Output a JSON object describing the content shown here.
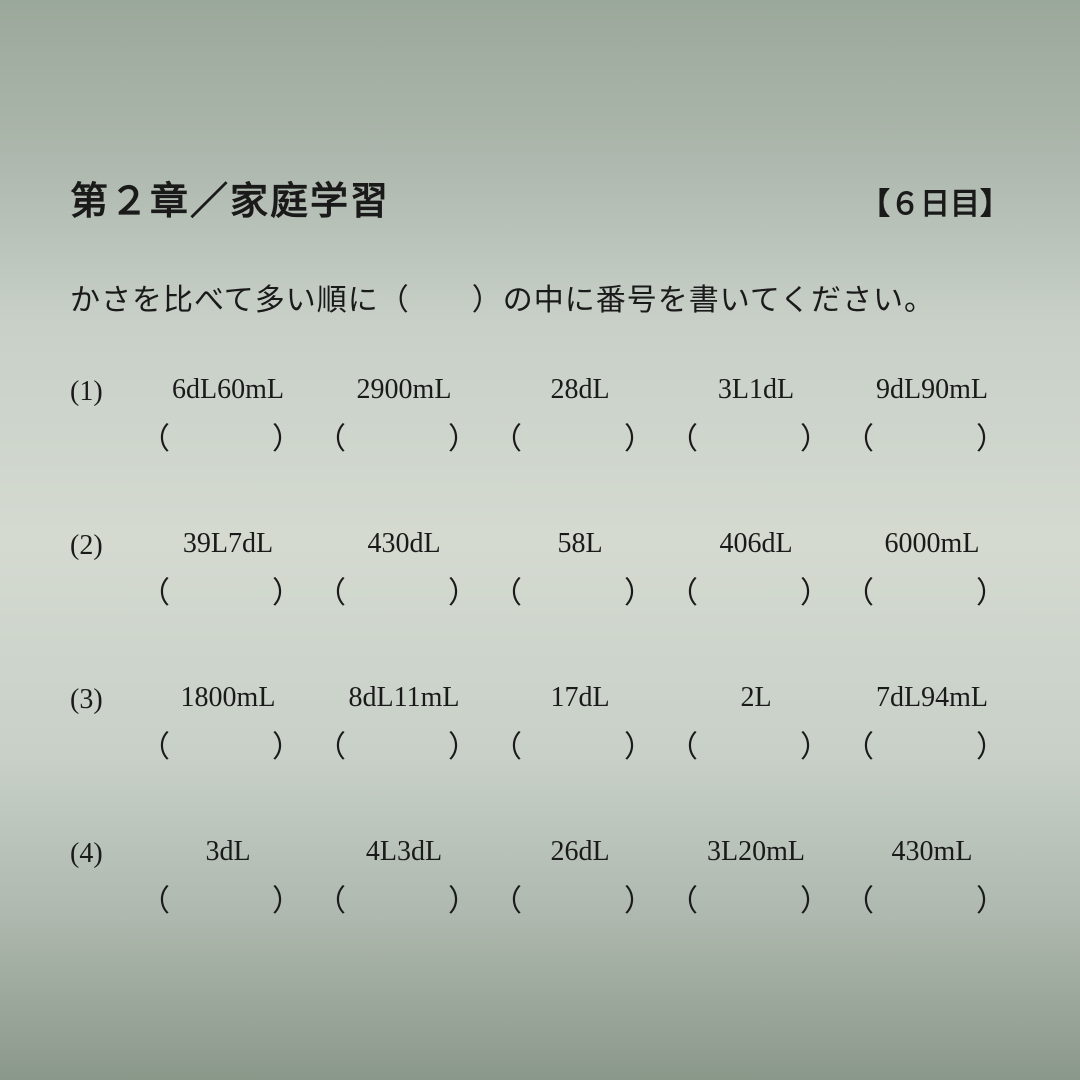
{
  "header": {
    "chapter_title": "第２章／家庭学習",
    "day_label": "【６日目】"
  },
  "instruction": "かさを比べて多い順に（　　）の中に番号を書いてください。",
  "blank_paren": "（　　）",
  "problems": [
    {
      "number": "(1)",
      "items": [
        "6dL60mL",
        "2900mL",
        "28dL",
        "3L1dL",
        "9dL90mL"
      ]
    },
    {
      "number": "(2)",
      "items": [
        "39L7dL",
        "430dL",
        "58L",
        "406dL",
        "6000mL"
      ]
    },
    {
      "number": "(3)",
      "items": [
        "1800mL",
        "8dL11mL",
        "17dL",
        "2L",
        "7dL94mL"
      ]
    },
    {
      "number": "(4)",
      "items": [
        "3dL",
        "4L3dL",
        "26dL",
        "3L20mL",
        "430mL"
      ]
    }
  ],
  "style": {
    "text_color": "#1a1a1a",
    "background_gradient": [
      "#9aa89a",
      "#aeb8ae",
      "#c8d0c8",
      "#d4dad0",
      "#c8d0c8",
      "#aeb8ae",
      "#8a988a"
    ],
    "title_fontsize": 38,
    "day_fontsize": 30,
    "instruction_fontsize": 30,
    "value_fontsize": 28,
    "paren_fontsize": 30,
    "font_family": "MS Mincho"
  }
}
